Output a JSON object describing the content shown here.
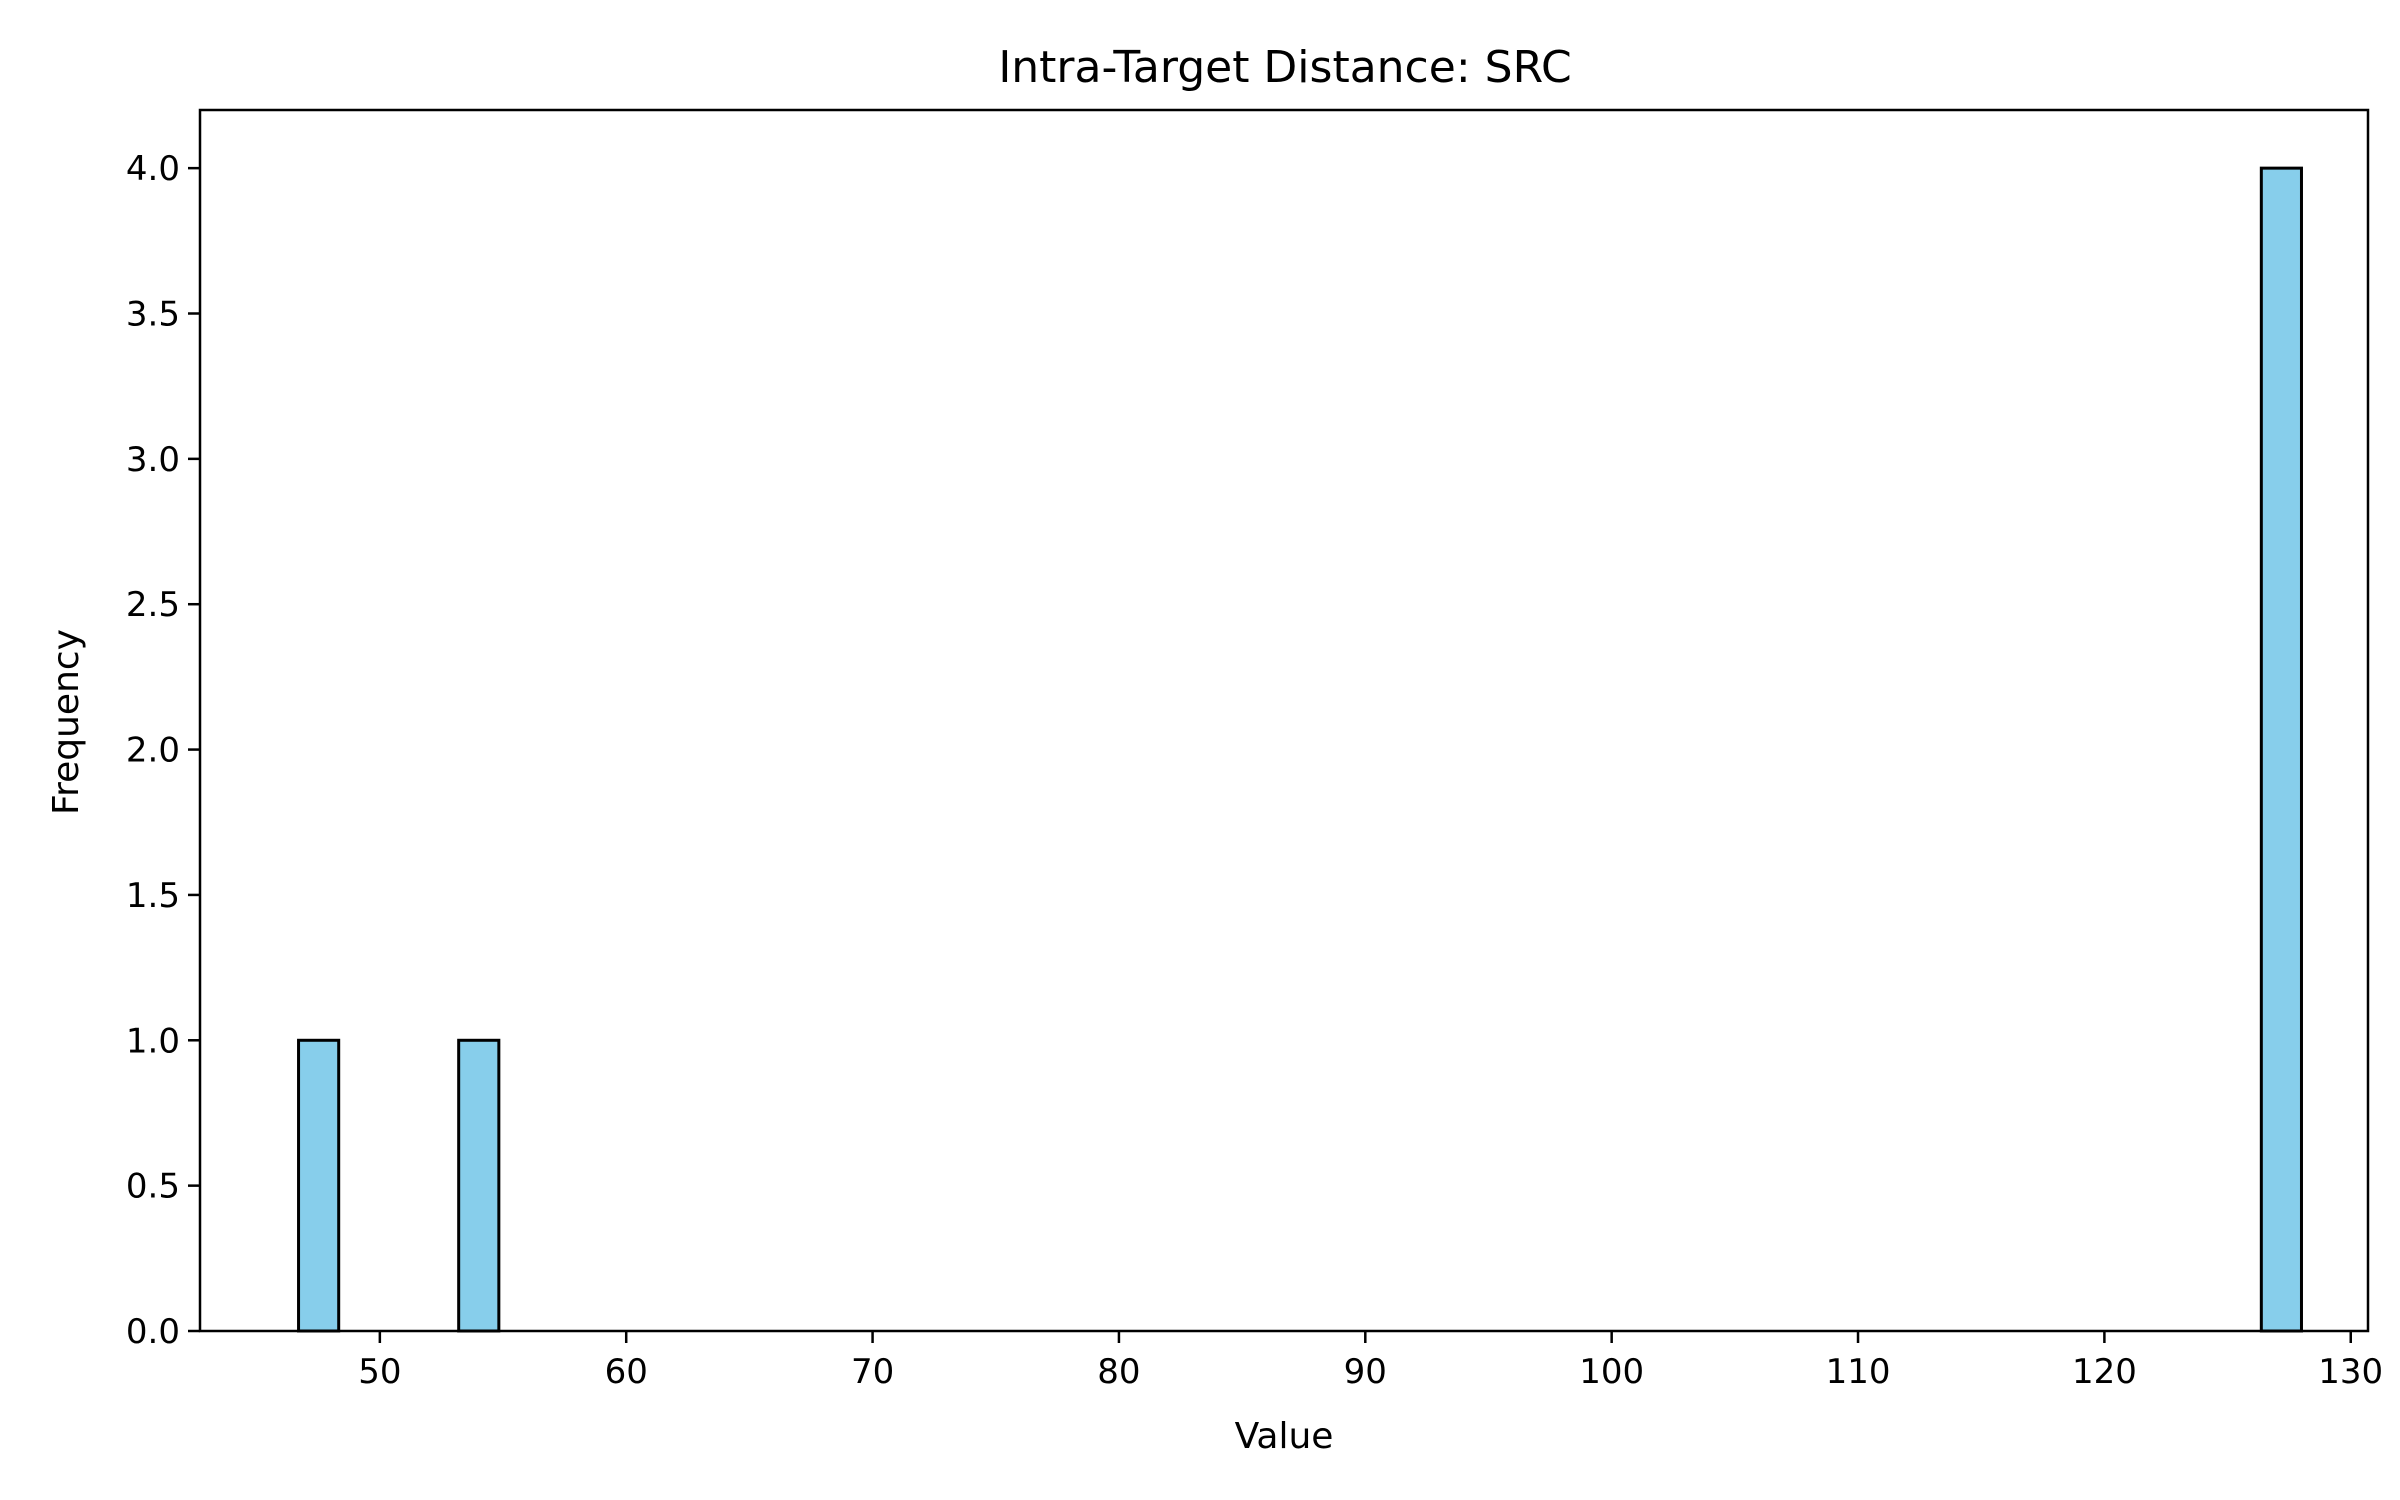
{
  "chart_data": {
    "type": "bar",
    "title": "Intra-Target Distance: SRC",
    "xlabel": "Value",
    "ylabel": "Frequency",
    "xlim": [
      42.7,
      130.7
    ],
    "ylim": [
      0,
      4.2
    ],
    "xticks": [
      50,
      60,
      70,
      80,
      90,
      100,
      110,
      120,
      130
    ],
    "yticks": [
      0.0,
      0.5,
      1.0,
      1.5,
      2.0,
      2.5,
      3.0,
      3.5,
      4.0
    ],
    "xtick_labels": [
      "50",
      "60",
      "70",
      "80",
      "90",
      "100",
      "110",
      "120",
      "130"
    ],
    "ytick_labels": [
      "0.0",
      "0.5",
      "1.0",
      "1.5",
      "2.0",
      "2.5",
      "3.0",
      "3.5",
      "4.0"
    ],
    "bins": [
      {
        "start": 46.7,
        "end": 48.33,
        "count": 1
      },
      {
        "start": 53.2,
        "end": 54.83,
        "count": 1
      },
      {
        "start": 126.37,
        "end": 128.0,
        "count": 4
      }
    ],
    "grid": false,
    "colors": {
      "bar_fill": "#87CEEB",
      "bar_edge": "#000000"
    }
  }
}
